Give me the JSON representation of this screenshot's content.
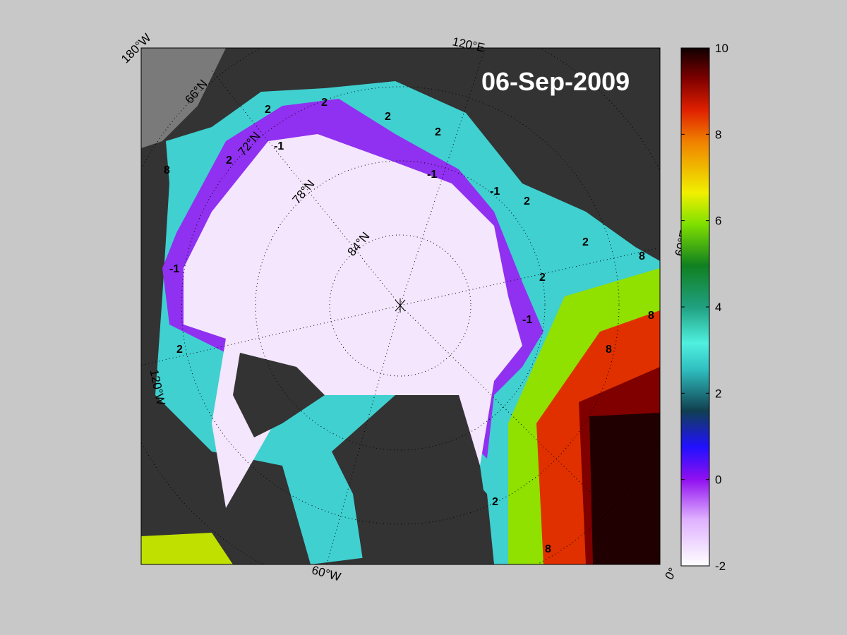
{
  "map": {
    "date_label": "06-Sep-2009",
    "longitude_labels": [
      "180°W",
      "120°E",
      "60°E",
      "0°",
      "60°W",
      "120°W"
    ],
    "latitude_labels": [
      "66°N",
      "72°N",
      "78°N",
      "84°N"
    ],
    "contour_levels": [
      -1,
      2,
      8
    ]
  },
  "colorbar": {
    "lim": [
      -2,
      10
    ],
    "ticks": [
      -2,
      0,
      2,
      4,
      6,
      8,
      10
    ]
  }
}
